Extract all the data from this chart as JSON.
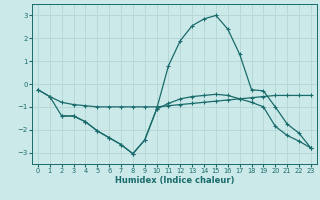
{
  "xlabel": "Humidex (Indice chaleur)",
  "background_color": "#cce9e9",
  "grid_color": "#b8d8d8",
  "line_color": "#1a6b6b",
  "xlim": [
    -0.5,
    23.5
  ],
  "ylim": [
    -3.5,
    3.5
  ],
  "yticks": [
    -3,
    -2,
    -1,
    0,
    1,
    2,
    3
  ],
  "xticks": [
    0,
    1,
    2,
    3,
    4,
    5,
    6,
    7,
    8,
    9,
    10,
    11,
    12,
    13,
    14,
    15,
    16,
    17,
    18,
    19,
    20,
    21,
    22,
    23
  ],
  "line1_x": [
    0,
    1,
    2,
    3,
    4,
    5,
    6,
    7,
    8,
    9,
    10,
    11,
    12,
    13,
    14,
    15,
    16,
    17,
    18,
    19,
    20,
    21,
    22,
    23
  ],
  "line1_y": [
    -0.25,
    -0.55,
    -0.8,
    -0.9,
    -0.95,
    -1.0,
    -1.0,
    -1.0,
    -1.0,
    -1.0,
    -1.0,
    -0.95,
    -0.9,
    -0.85,
    -0.8,
    -0.75,
    -0.7,
    -0.65,
    -0.6,
    -0.55,
    -0.5,
    -0.5,
    -0.5,
    -0.5
  ],
  "line2_x": [
    0,
    1,
    2,
    3,
    4,
    5,
    6,
    7,
    8,
    9,
    10,
    11,
    12,
    13,
    14,
    15,
    16,
    17,
    18,
    19,
    20,
    21,
    22,
    23
  ],
  "line2_y": [
    -0.25,
    -0.55,
    -1.4,
    -1.4,
    -1.65,
    -2.05,
    -2.35,
    -2.65,
    -3.05,
    -2.45,
    -1.1,
    -0.85,
    -0.65,
    -0.55,
    -0.5,
    -0.45,
    -0.5,
    -0.65,
    -0.8,
    -1.0,
    -1.85,
    -2.25,
    -2.5,
    -2.8
  ],
  "line3_x": [
    2,
    3,
    4,
    5,
    6,
    7,
    8,
    9,
    10,
    11,
    12,
    13,
    14,
    15,
    16,
    17,
    18,
    19,
    20,
    21,
    22,
    23
  ],
  "line3_y": [
    -1.4,
    -1.4,
    -1.65,
    -2.05,
    -2.35,
    -2.65,
    -3.05,
    -2.45,
    -1.1,
    0.8,
    1.9,
    2.55,
    2.85,
    3.0,
    2.4,
    1.3,
    -0.25,
    -0.3,
    -1.0,
    -1.75,
    -2.15,
    -2.8
  ]
}
